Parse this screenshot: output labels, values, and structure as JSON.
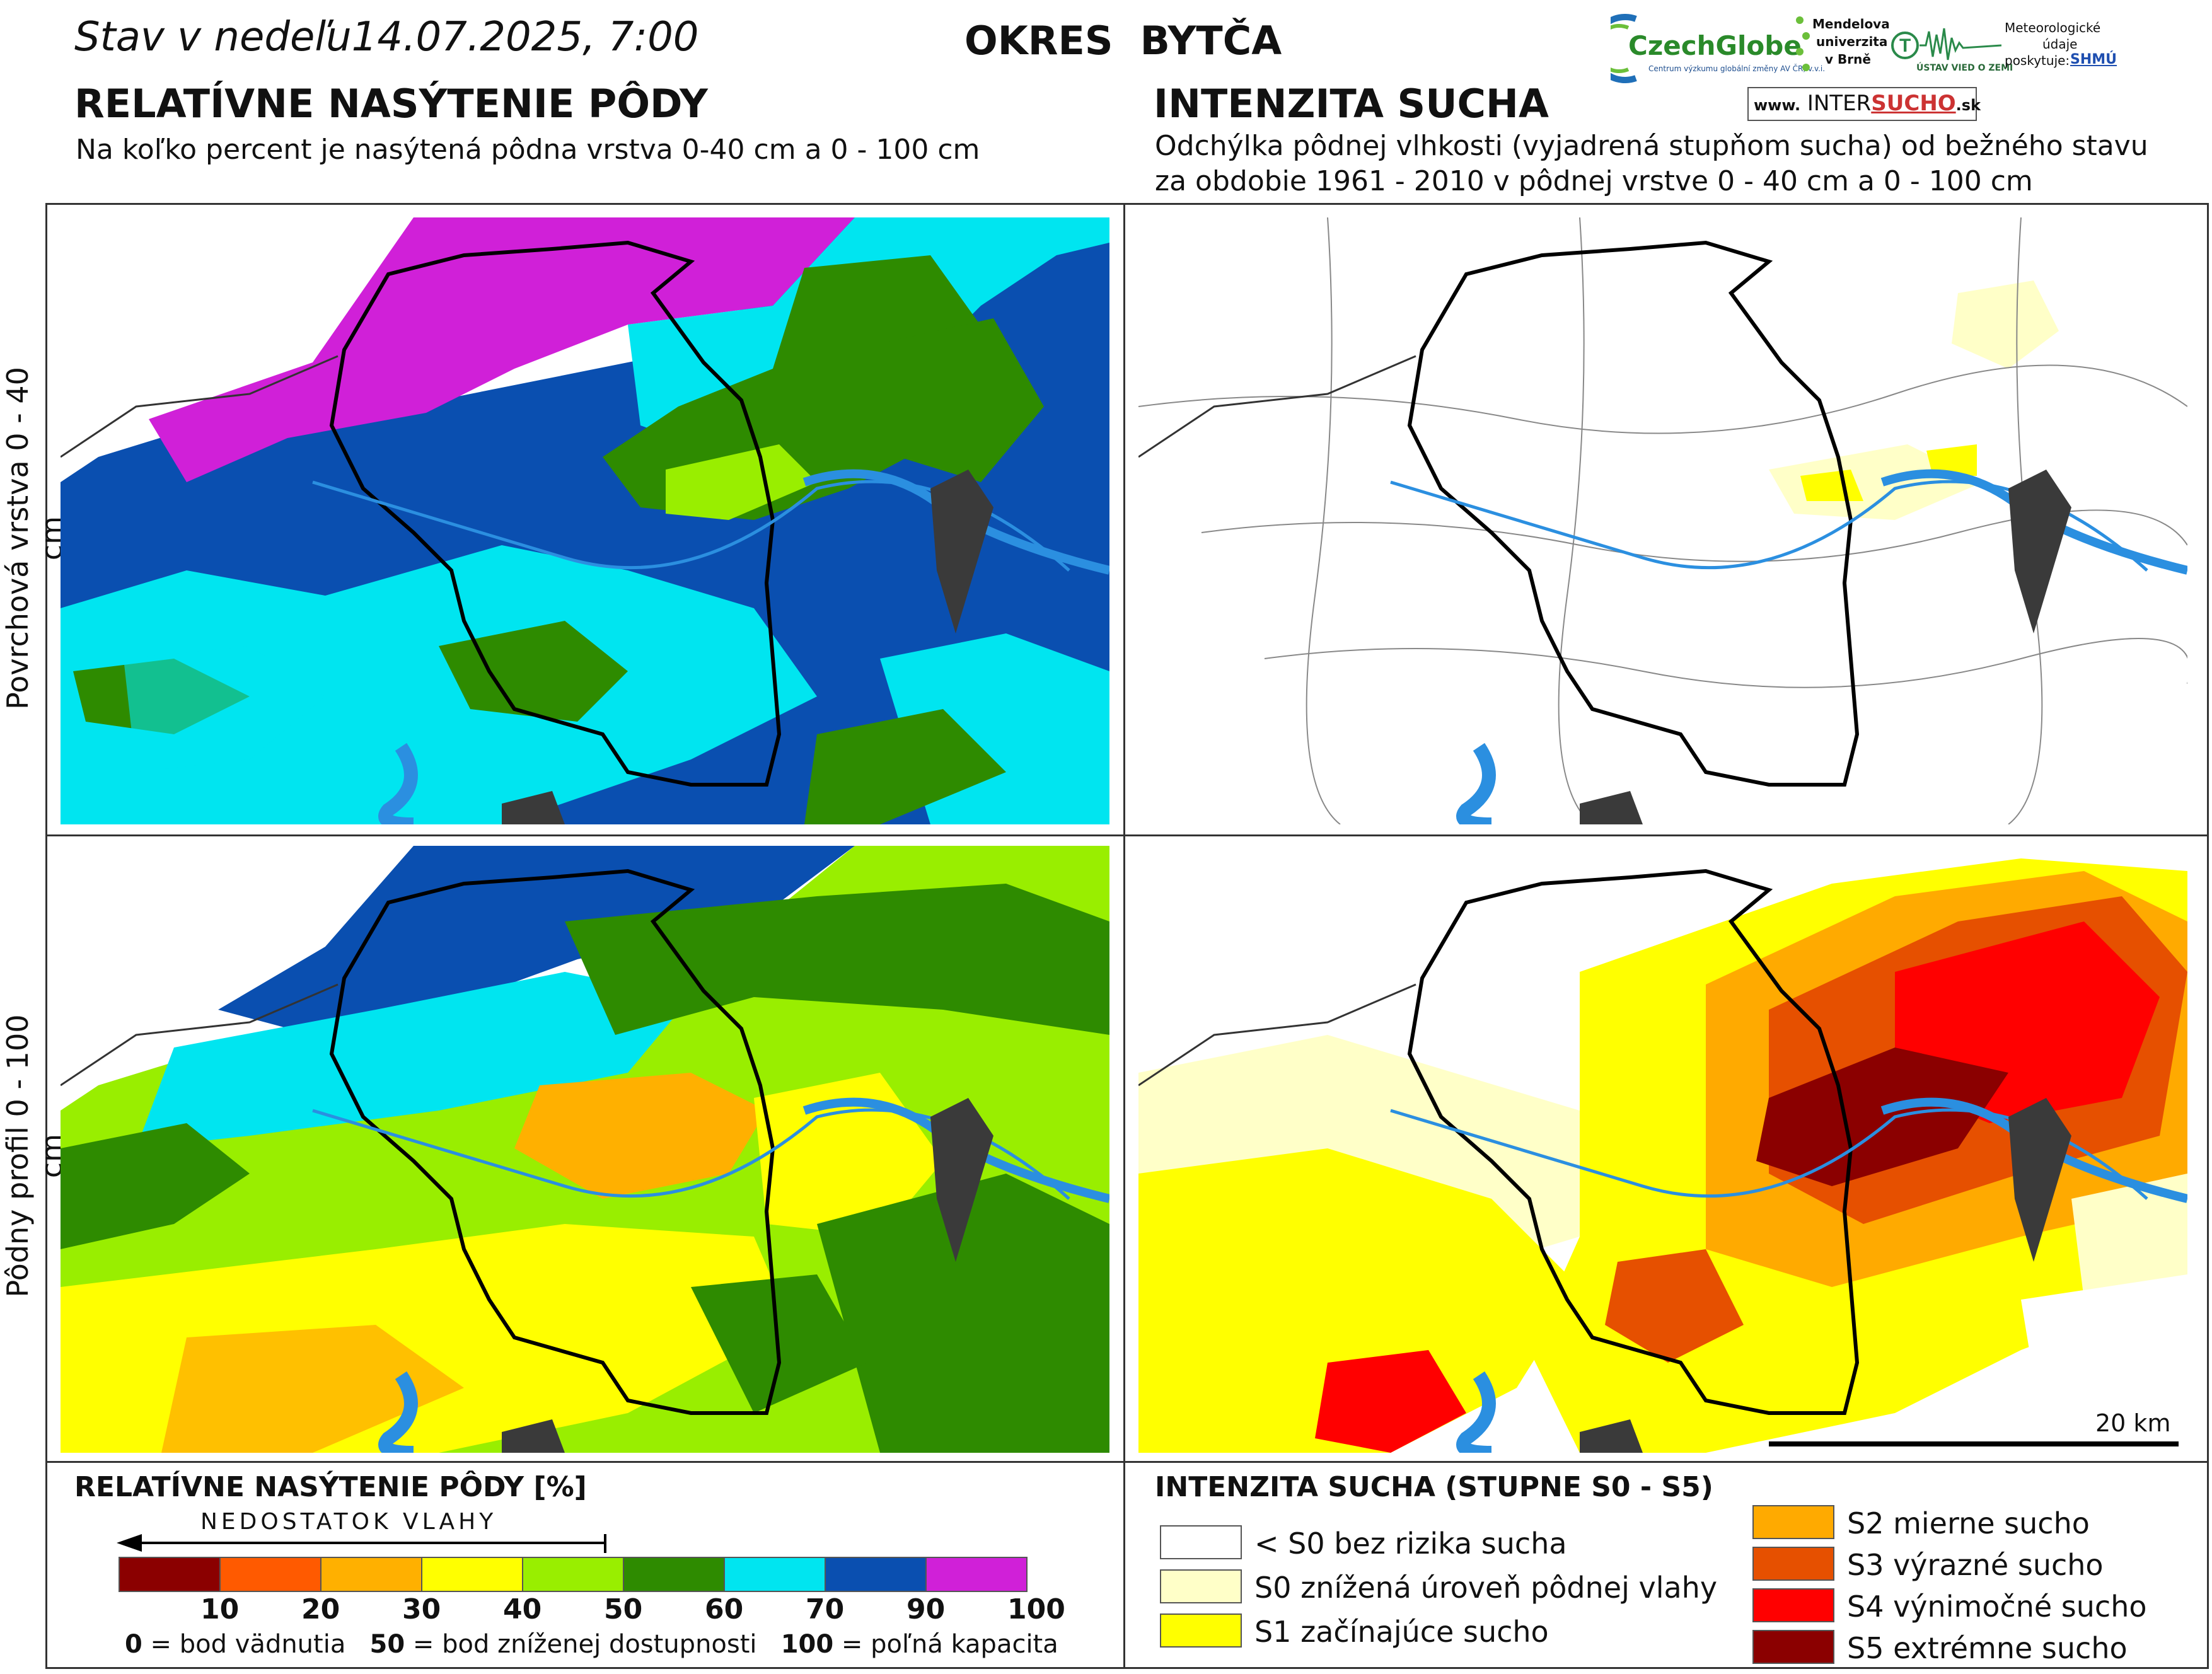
{
  "header": {
    "date_prefix": "Stav v nedeľu",
    "date_value": "14.07.2025, 7:00",
    "district": "OKRES  BYTČA",
    "left_title": "RELATÍVNE NASÝTENIE PÔDY",
    "left_subtitle": "Na koľko percent je nasýtená pôdna vrstva 0-40 cm a 0 - 100 cm",
    "right_title": "INTENZITA SUCHA",
    "right_subtitle_1": "Odchýlka pôdnej vlhkosti (vyjadrená stupňom sucha) od bežného stavu",
    "right_subtitle_2": "za obdobie 1961 - 2010 v pôdnej vrstve 0 - 40 cm a 0 - 100 cm"
  },
  "logos": {
    "czechglobe": "CzechGlobe",
    "czechglobe_sub": "Centrum výzkumu globální změny AV ČR, v.v.i.",
    "mendel_1": "Mendelova",
    "mendel_2": "univerzita",
    "mendel_3": "v Brně",
    "uvz": "ÚSTAV VIED O ZEMI",
    "meteo_1": "Meteorologické",
    "meteo_2": "údaje",
    "meteo_3": "poskytuje:",
    "shmu": "SHMÚ",
    "intersucho_prefix": "www.",
    "intersucho_a": "INTER",
    "intersucho_b": "SUCHO",
    "intersucho_suffix": ".sk"
  },
  "row_labels": {
    "top": "Povrchová vrstva 0 - 40 cm",
    "bottom": "Pôdny profil 0 - 100 cm"
  },
  "scale_bar": {
    "label": "20 km"
  },
  "saturation_legend": {
    "title": "RELATÍVNE NASÝTENIE PÔDY [%]",
    "arrow_label": "NEDOSTATOK VLAHY",
    "colors": [
      "#8b0000",
      "#ff5a00",
      "#ffb000",
      "#ffff00",
      "#99ee00",
      "#2e8b00",
      "#00e5f0",
      "#0a4fb0",
      "#d020d8"
    ],
    "ticks": [
      "10",
      "20",
      "30",
      "40",
      "50",
      "60",
      "70",
      "90",
      "100"
    ],
    "footnote_0": "0",
    "footnote_0_text": " = bod vädnutia",
    "footnote_50": "50",
    "footnote_50_text": " = bod zníženej dostupnosti",
    "footnote_100": "100",
    "footnote_100_text": " = poľná kapacita"
  },
  "drought_legend": {
    "title": "INTENZITA SUCHA (STUPNE S0 - S5)",
    "items": [
      {
        "label": "< S0 bez rizika sucha",
        "color": "#ffffff"
      },
      {
        "label": "S0 znížená úroveň pôdnej vlahy",
        "color": "#ffffc8"
      },
      {
        "label": "S1 začínajúce sucho",
        "color": "#ffff00"
      },
      {
        "label": "S2 mierne sucho",
        "color": "#ffaa00"
      },
      {
        "label": "S3 výrazné sucho",
        "color": "#e65000"
      },
      {
        "label": "S4 výnimočné sucho",
        "color": "#ff0000"
      },
      {
        "label": "S5 extrémne sucho",
        "color": "#8b0000"
      }
    ]
  }
}
